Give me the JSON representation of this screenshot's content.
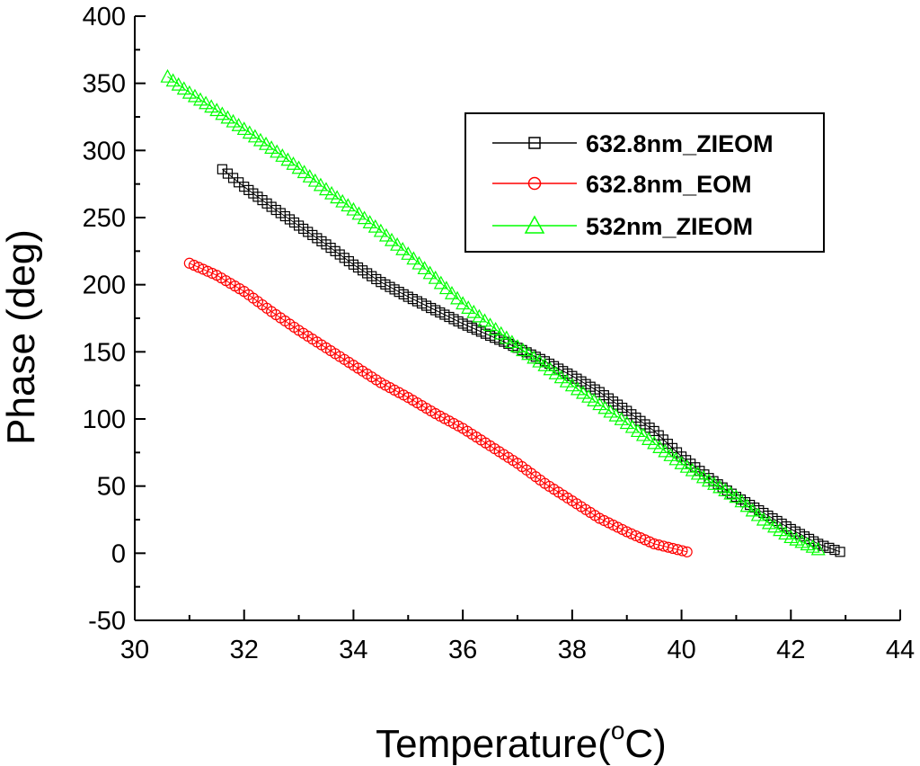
{
  "chart_data": {
    "type": "scatter",
    "title": "",
    "xlabel": "Temperature(",
    "xlabel_sup": "o",
    "xlabel_unit": "C)",
    "ylabel": "Phase (deg)",
    "xlim": [
      30,
      44
    ],
    "ylim": [
      -50,
      400
    ],
    "x_ticks": [
      "30",
      "32",
      "34",
      "36",
      "38",
      "40",
      "42",
      "44"
    ],
    "y_ticks": [
      "-50",
      "0",
      "50",
      "100",
      "150",
      "200",
      "250",
      "300",
      "350",
      "400"
    ],
    "grid": false,
    "legend_position": "top-right",
    "series": [
      {
        "name": "632.8nm_ZIEOM",
        "color": "#000000",
        "marker": "square",
        "points": [
          [
            31.6,
            286
          ],
          [
            32.0,
            273
          ],
          [
            32.5,
            258
          ],
          [
            33.0,
            244
          ],
          [
            33.5,
            230
          ],
          [
            34.0,
            215
          ],
          [
            34.5,
            202
          ],
          [
            35.0,
            191
          ],
          [
            35.5,
            181
          ],
          [
            36.0,
            171
          ],
          [
            36.5,
            162
          ],
          [
            37.0,
            153
          ],
          [
            37.5,
            143
          ],
          [
            38.0,
            132
          ],
          [
            38.5,
            120
          ],
          [
            39.0,
            106
          ],
          [
            39.5,
            91
          ],
          [
            40.0,
            72
          ],
          [
            40.5,
            56
          ],
          [
            41.0,
            42
          ],
          [
            41.5,
            30
          ],
          [
            42.0,
            18
          ],
          [
            42.5,
            7
          ],
          [
            42.9,
            1
          ]
        ]
      },
      {
        "name": "632.8nm_EOM",
        "color": "#ff0000",
        "marker": "circle",
        "points": [
          [
            31.0,
            216
          ],
          [
            31.5,
            207
          ],
          [
            32.0,
            195
          ],
          [
            32.5,
            180
          ],
          [
            33.0,
            166
          ],
          [
            33.5,
            153
          ],
          [
            34.0,
            140
          ],
          [
            34.5,
            127
          ],
          [
            35.0,
            116
          ],
          [
            35.5,
            104
          ],
          [
            36.0,
            93
          ],
          [
            36.5,
            80
          ],
          [
            37.0,
            67
          ],
          [
            37.5,
            52
          ],
          [
            38.0,
            39
          ],
          [
            38.5,
            26
          ],
          [
            39.0,
            16
          ],
          [
            39.5,
            7
          ],
          [
            40.1,
            1
          ]
        ]
      },
      {
        "name": "532nm_ZIEOM",
        "color": "#00ff00",
        "marker": "triangle",
        "points": [
          [
            30.6,
            355
          ],
          [
            31.0,
            343
          ],
          [
            31.5,
            330
          ],
          [
            32.0,
            316
          ],
          [
            32.5,
            302
          ],
          [
            33.0,
            287
          ],
          [
            33.5,
            271
          ],
          [
            34.0,
            256
          ],
          [
            34.5,
            240
          ],
          [
            35.0,
            223
          ],
          [
            35.5,
            205
          ],
          [
            36.0,
            186
          ],
          [
            36.5,
            170
          ],
          [
            37.0,
            154
          ],
          [
            37.5,
            140
          ],
          [
            38.0,
            125
          ],
          [
            38.5,
            111
          ],
          [
            39.0,
            97
          ],
          [
            39.5,
            82
          ],
          [
            40.0,
            67
          ],
          [
            40.5,
            54
          ],
          [
            41.0,
            42
          ],
          [
            41.5,
            25
          ],
          [
            42.0,
            12
          ],
          [
            42.5,
            3
          ]
        ]
      }
    ]
  }
}
